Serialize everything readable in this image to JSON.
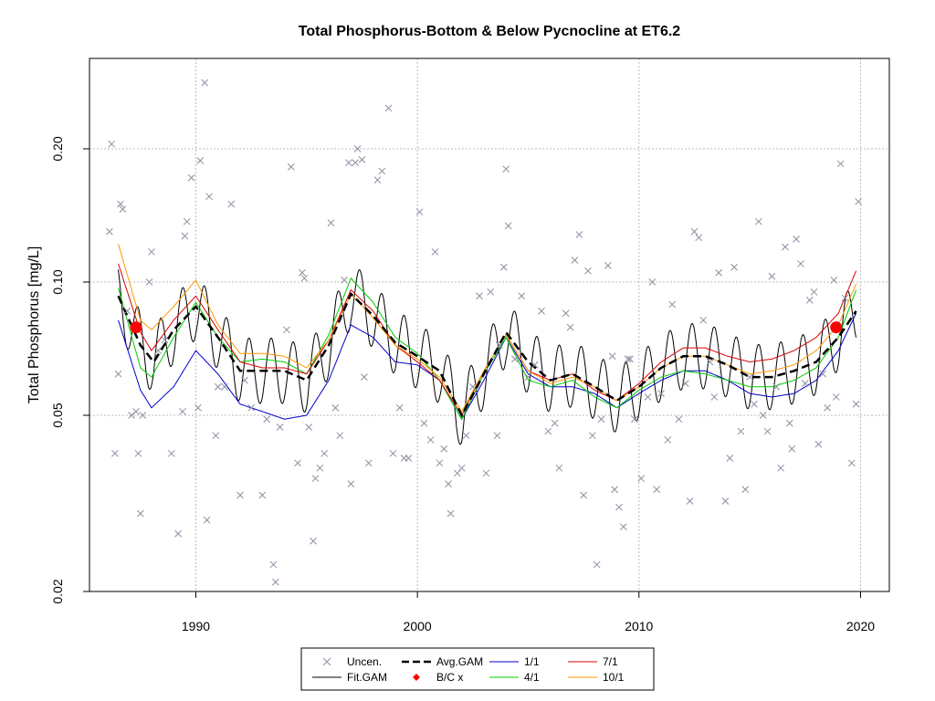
{
  "chart_data": {
    "type": "line",
    "title": "Total Phosphorus-Bottom & Below Pycnocline at ET6.2",
    "xlabel": "",
    "ylabel": "Total Phosphorus [mg/L]",
    "y_scale": "log",
    "xlim": [
      1985.2,
      2021.3
    ],
    "ylim": [
      0.02,
      0.32
    ],
    "x_ticks": [
      1990,
      2000,
      2010,
      2020
    ],
    "y_ticks": [
      0.02,
      0.05,
      0.1,
      0.2
    ],
    "y_tick_labels": [
      "0.02",
      "0.05",
      "0.10",
      "0.20"
    ],
    "x_tick_labels": [
      "1990",
      "2000",
      "2010",
      "2020"
    ],
    "grid": true,
    "legend_position": "bottom",
    "colors": {
      "uncen": "#8a8fa0",
      "fit_gam": "#000000",
      "avg_gam": "#000000",
      "bc": "#ff0000",
      "s1_1": "#0000cc",
      "s4_1": "#00cc00",
      "s7_1": "#dd0000",
      "s10_1": "#ff9900"
    },
    "legend": [
      {
        "key": "uncen",
        "label": "Uncen."
      },
      {
        "key": "avg_gam",
        "label": "Avg.GAM"
      },
      {
        "key": "s1_1",
        "label": "1/1"
      },
      {
        "key": "s7_1",
        "label": "7/1"
      },
      {
        "key": "fit_gam",
        "label": "Fit.GAM"
      },
      {
        "key": "bc",
        "label": "B/C x"
      },
      {
        "key": "s4_1",
        "label": "4/1"
      },
      {
        "key": "s10_1",
        "label": "10/1"
      }
    ],
    "bc_points": [
      {
        "x": 1987.3,
        "y": 0.079
      },
      {
        "x": 2018.9,
        "y": 0.079
      }
    ],
    "avg_gam": {
      "x": [
        1986.5,
        1987.5,
        1988.1,
        1989.0,
        1990.0,
        1991.0,
        1992.0,
        1993.0,
        1994.0,
        1995.0,
        1996.0,
        1997.0,
        1998.0,
        1999.0,
        2000.0,
        2001.0,
        2002.0,
        2003.0,
        2004.0,
        2005.0,
        2006.0,
        2007.0,
        2008.0,
        2009.0,
        2010.0,
        2011.0,
        2012.0,
        2013.0,
        2014.0,
        2015.0,
        2016.0,
        2017.0,
        2018.0,
        2019.0,
        2019.8
      ],
      "y": [
        0.093,
        0.072,
        0.066,
        0.078,
        0.088,
        0.075,
        0.063,
        0.063,
        0.063,
        0.06,
        0.072,
        0.094,
        0.084,
        0.073,
        0.068,
        0.063,
        0.05,
        0.062,
        0.077,
        0.066,
        0.06,
        0.062,
        0.058,
        0.054,
        0.058,
        0.064,
        0.068,
        0.068,
        0.065,
        0.061,
        0.061,
        0.063,
        0.066,
        0.075,
        0.086
      ]
    },
    "series": [
      {
        "key": "s1_1",
        "name": "1/1",
        "x": [
          1986.5,
          1987.5,
          1988.0,
          1989.0,
          1990.0,
          1991.0,
          1992.0,
          1993.0,
          1994.0,
          1995.0,
          1996.0,
          1997.0,
          1998.0,
          1999.0,
          2000.0,
          2001.0,
          2002.0,
          2003.0,
          2004.0,
          2005.0,
          2006.0,
          2007.0,
          2008.0,
          2009.0,
          2010.0,
          2011.0,
          2012.0,
          2013.0,
          2014.0,
          2015.0,
          2016.0,
          2017.0,
          2018.0,
          2019.0,
          2019.8
        ],
        "y": [
          0.082,
          0.057,
          0.052,
          0.058,
          0.07,
          0.062,
          0.053,
          0.051,
          0.049,
          0.05,
          0.06,
          0.08,
          0.075,
          0.066,
          0.065,
          0.06,
          0.049,
          0.06,
          0.075,
          0.062,
          0.058,
          0.058,
          0.056,
          0.052,
          0.056,
          0.06,
          0.063,
          0.063,
          0.06,
          0.056,
          0.055,
          0.056,
          0.06,
          0.07,
          0.085
        ]
      },
      {
        "key": "s4_1",
        "name": "4/1",
        "x": [
          1986.5,
          1987.5,
          1988.0,
          1989.0,
          1990.0,
          1991.0,
          1992.0,
          1993.0,
          1994.0,
          1995.0,
          1996.0,
          1997.0,
          1998.0,
          1999.0,
          2000.0,
          2001.0,
          2002.0,
          2003.0,
          2004.0,
          2005.0,
          2006.0,
          2007.0,
          2008.0,
          2009.0,
          2010.0,
          2011.0,
          2012.0,
          2013.0,
          2014.0,
          2015.0,
          2016.0,
          2017.0,
          2018.0,
          2019.0,
          2019.8
        ],
        "y": [
          0.097,
          0.064,
          0.061,
          0.075,
          0.09,
          0.075,
          0.066,
          0.067,
          0.066,
          0.062,
          0.076,
          0.102,
          0.09,
          0.075,
          0.069,
          0.06,
          0.049,
          0.062,
          0.075,
          0.06,
          0.058,
          0.06,
          0.055,
          0.052,
          0.057,
          0.061,
          0.063,
          0.062,
          0.06,
          0.058,
          0.058,
          0.06,
          0.064,
          0.075,
          0.096
        ]
      },
      {
        "key": "s7_1",
        "name": "7/1",
        "x": [
          1986.5,
          1987.5,
          1988.0,
          1989.0,
          1990.0,
          1991.0,
          1992.0,
          1993.0,
          1994.0,
          1995.0,
          1996.0,
          1997.0,
          1998.0,
          1999.0,
          2000.0,
          2001.0,
          2002.0,
          2003.0,
          2004.0,
          2005.0,
          2006.0,
          2007.0,
          2008.0,
          2009.0,
          2010.0,
          2011.0,
          2012.0,
          2013.0,
          2014.0,
          2015.0,
          2016.0,
          2017.0,
          2018.0,
          2019.0,
          2019.8
        ],
        "y": [
          0.11,
          0.077,
          0.07,
          0.082,
          0.093,
          0.078,
          0.066,
          0.064,
          0.064,
          0.062,
          0.074,
          0.096,
          0.086,
          0.072,
          0.066,
          0.06,
          0.05,
          0.063,
          0.076,
          0.063,
          0.06,
          0.062,
          0.057,
          0.054,
          0.059,
          0.066,
          0.071,
          0.071,
          0.068,
          0.066,
          0.067,
          0.07,
          0.075,
          0.085,
          0.106
        ]
      },
      {
        "key": "s10_1",
        "name": "10/1",
        "x": [
          1986.5,
          1987.5,
          1988.0,
          1989.0,
          1990.0,
          1991.0,
          1992.0,
          1993.0,
          1994.0,
          1995.0,
          1996.0,
          1997.0,
          1998.0,
          1999.0,
          2000.0,
          2001.0,
          2002.0,
          2003.0,
          2004.0,
          2005.0,
          2006.0,
          2007.0,
          2008.0,
          2009.0,
          2010.0,
          2011.0,
          2012.0,
          2013.0,
          2014.0,
          2015.0,
          2016.0,
          2017.0,
          2018.0,
          2019.0,
          2019.8
        ],
        "y": [
          0.122,
          0.082,
          0.078,
          0.088,
          0.101,
          0.08,
          0.069,
          0.069,
          0.068,
          0.064,
          0.074,
          0.094,
          0.083,
          0.072,
          0.067,
          0.061,
          0.051,
          0.063,
          0.076,
          0.063,
          0.059,
          0.061,
          0.058,
          0.054,
          0.058,
          0.064,
          0.068,
          0.068,
          0.065,
          0.062,
          0.063,
          0.065,
          0.07,
          0.08,
          0.099
        ]
      }
    ],
    "seasonal_amplitude": 0.17,
    "uncen_points": [
      [
        1986.1,
        0.13
      ],
      [
        1986.2,
        0.205
      ],
      [
        1986.35,
        0.041
      ],
      [
        1986.5,
        0.062
      ],
      [
        1986.6,
        0.15
      ],
      [
        1986.7,
        0.146
      ],
      [
        1986.9,
        0.086
      ],
      [
        1987.1,
        0.05
      ],
      [
        1987.3,
        0.051
      ],
      [
        1987.4,
        0.041
      ],
      [
        1987.5,
        0.03
      ],
      [
        1987.6,
        0.05
      ],
      [
        1987.9,
        0.1
      ],
      [
        1988.0,
        0.117
      ],
      [
        1988.3,
        0.07
      ],
      [
        1988.6,
        0.074
      ],
      [
        1988.9,
        0.041
      ],
      [
        1989.2,
        0.027
      ],
      [
        1989.4,
        0.051
      ],
      [
        1989.5,
        0.127
      ],
      [
        1989.6,
        0.137
      ],
      [
        1989.8,
        0.172
      ],
      [
        1990.1,
        0.052
      ],
      [
        1990.2,
        0.188
      ],
      [
        1990.4,
        0.282
      ],
      [
        1990.5,
        0.029
      ],
      [
        1990.6,
        0.156
      ],
      [
        1990.9,
        0.045
      ],
      [
        1991.0,
        0.058
      ],
      [
        1991.3,
        0.058
      ],
      [
        1991.6,
        0.15
      ],
      [
        1992.0,
        0.033
      ],
      [
        1992.2,
        0.06
      ],
      [
        1992.5,
        0.052
      ],
      [
        1993.0,
        0.033
      ],
      [
        1993.2,
        0.049
      ],
      [
        1993.5,
        0.023
      ],
      [
        1993.6,
        0.021
      ],
      [
        1993.8,
        0.047
      ],
      [
        1994.1,
        0.078
      ],
      [
        1994.3,
        0.182
      ],
      [
        1994.6,
        0.039
      ],
      [
        1994.8,
        0.105
      ],
      [
        1994.9,
        0.102
      ],
      [
        1995.1,
        0.047
      ],
      [
        1995.3,
        0.026
      ],
      [
        1995.4,
        0.036
      ],
      [
        1995.6,
        0.038
      ],
      [
        1995.8,
        0.041
      ],
      [
        1996.1,
        0.136
      ],
      [
        1996.3,
        0.052
      ],
      [
        1996.5,
        0.045
      ],
      [
        1996.7,
        0.101
      ],
      [
        1996.9,
        0.186
      ],
      [
        1997.0,
        0.035
      ],
      [
        1997.2,
        0.186
      ],
      [
        1997.3,
        0.2
      ],
      [
        1997.5,
        0.189
      ],
      [
        1997.6,
        0.061
      ],
      [
        1997.8,
        0.039
      ],
      [
        1998.2,
        0.17
      ],
      [
        1998.4,
        0.178
      ],
      [
        1998.7,
        0.247
      ],
      [
        1998.9,
        0.041
      ],
      [
        1999.2,
        0.052
      ],
      [
        1999.4,
        0.04
      ],
      [
        1999.6,
        0.04
      ],
      [
        2000.1,
        0.144
      ],
      [
        2000.3,
        0.048
      ],
      [
        2000.6,
        0.044
      ],
      [
        2000.8,
        0.117
      ],
      [
        2001.0,
        0.039
      ],
      [
        2001.2,
        0.042
      ],
      [
        2001.4,
        0.035
      ],
      [
        2001.5,
        0.03
      ],
      [
        2001.8,
        0.037
      ],
      [
        2002.0,
        0.038
      ],
      [
        2002.2,
        0.045
      ],
      [
        2002.5,
        0.058
      ],
      [
        2002.8,
        0.093
      ],
      [
        2003.1,
        0.037
      ],
      [
        2003.3,
        0.095
      ],
      [
        2003.6,
        0.045
      ],
      [
        2003.7,
        0.072
      ],
      [
        2003.9,
        0.108
      ],
      [
        2004.0,
        0.18
      ],
      [
        2004.1,
        0.134
      ],
      [
        2004.4,
        0.067
      ],
      [
        2004.7,
        0.093
      ],
      [
        2005.0,
        0.061
      ],
      [
        2005.3,
        0.065
      ],
      [
        2005.6,
        0.086
      ],
      [
        2005.9,
        0.046
      ],
      [
        2006.2,
        0.048
      ],
      [
        2006.4,
        0.038
      ],
      [
        2006.7,
        0.085
      ],
      [
        2006.9,
        0.079
      ],
      [
        2007.1,
        0.112
      ],
      [
        2007.3,
        0.128
      ],
      [
        2007.5,
        0.033
      ],
      [
        2007.7,
        0.106
      ],
      [
        2007.9,
        0.045
      ],
      [
        2008.1,
        0.023
      ],
      [
        2008.3,
        0.049
      ],
      [
        2008.6,
        0.109
      ],
      [
        2008.8,
        0.068
      ],
      [
        2008.9,
        0.034
      ],
      [
        2009.1,
        0.031
      ],
      [
        2009.3,
        0.028
      ],
      [
        2009.5,
        0.067
      ],
      [
        2009.6,
        0.067
      ],
      [
        2009.8,
        0.049
      ],
      [
        2010.1,
        0.036
      ],
      [
        2010.4,
        0.055
      ],
      [
        2010.6,
        0.1
      ],
      [
        2010.8,
        0.034
      ],
      [
        2011.0,
        0.056
      ],
      [
        2011.3,
        0.044
      ],
      [
        2011.5,
        0.089
      ],
      [
        2011.8,
        0.049
      ],
      [
        2012.1,
        0.059
      ],
      [
        2012.3,
        0.032
      ],
      [
        2012.5,
        0.13
      ],
      [
        2012.7,
        0.126
      ],
      [
        2012.9,
        0.082
      ],
      [
        2013.2,
        0.066
      ],
      [
        2013.4,
        0.055
      ],
      [
        2013.6,
        0.105
      ],
      [
        2013.9,
        0.032
      ],
      [
        2014.1,
        0.04
      ],
      [
        2014.3,
        0.108
      ],
      [
        2014.6,
        0.046
      ],
      [
        2014.8,
        0.034
      ],
      [
        2015.0,
        0.061
      ],
      [
        2015.2,
        0.053
      ],
      [
        2015.4,
        0.137
      ],
      [
        2015.6,
        0.05
      ],
      [
        2015.8,
        0.046
      ],
      [
        2016.0,
        0.103
      ],
      [
        2016.2,
        0.058
      ],
      [
        2016.4,
        0.038
      ],
      [
        2016.6,
        0.12
      ],
      [
        2016.8,
        0.048
      ],
      [
        2016.9,
        0.042
      ],
      [
        2017.1,
        0.125
      ],
      [
        2017.3,
        0.11
      ],
      [
        2017.5,
        0.059
      ],
      [
        2017.7,
        0.091
      ],
      [
        2017.9,
        0.095
      ],
      [
        2018.1,
        0.043
      ],
      [
        2018.3,
        0.062
      ],
      [
        2018.5,
        0.052
      ],
      [
        2018.8,
        0.101
      ],
      [
        2018.9,
        0.055
      ],
      [
        2019.1,
        0.185
      ],
      [
        2019.3,
        0.092
      ],
      [
        2019.6,
        0.039
      ],
      [
        2019.8,
        0.053
      ],
      [
        2019.9,
        0.152
      ]
    ]
  }
}
